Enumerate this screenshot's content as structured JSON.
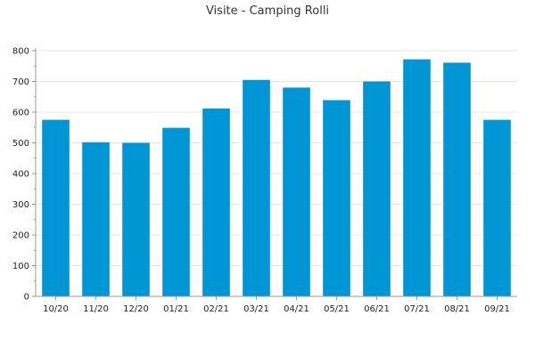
{
  "chart_data": {
    "type": "bar",
    "title": "Visite - Camping Rolli",
    "xlabel": "",
    "ylabel": "",
    "categories": [
      "10/20",
      "11/20",
      "12/20",
      "01/21",
      "02/21",
      "03/21",
      "04/21",
      "05/21",
      "06/21",
      "07/21",
      "08/21",
      "09/21"
    ],
    "values": [
      575,
      502,
      500,
      549,
      612,
      705,
      680,
      639,
      700,
      772,
      761,
      575
    ],
    "ylim": [
      0,
      800
    ],
    "yticks": [
      0,
      100,
      200,
      300,
      400,
      500,
      600,
      700,
      800
    ],
    "grid": true,
    "legend": "none",
    "bar_color": "#0096d6",
    "grid_color": "#e6e6e6",
    "axis_color": "#999999"
  }
}
